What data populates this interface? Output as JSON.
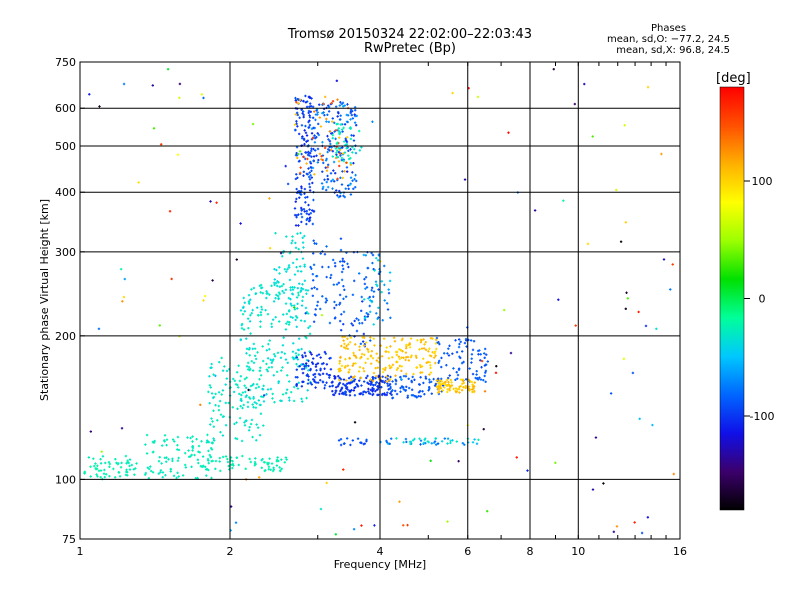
{
  "chart_data": {
    "type": "scatter",
    "title": "Tromsø 20150324 22:02:00–22:03:43",
    "subtitle": "RwPretec (Bp)",
    "xlabel": "Frequency [MHz]",
    "ylabel": "Stationary phase Virtual Height [km]",
    "x_scale": "log",
    "y_scale": "log",
    "xlim": [
      1,
      16
    ],
    "ylim": [
      75,
      750
    ],
    "x_ticks": [
      1,
      2,
      4,
      6,
      8,
      10,
      16
    ],
    "y_ticks": [
      75,
      100,
      200,
      300,
      400,
      500,
      600,
      750
    ],
    "grid": true,
    "stats": {
      "heading": "Phases",
      "line_o": "mean, sd,O: −77.2, 24.5",
      "line_x": "mean, sd,X: 96.8, 24.5"
    },
    "colorbar": {
      "label": "[deg]",
      "range": [
        -180,
        180
      ],
      "ticks": [
        100,
        0,
        -100
      ],
      "colors": [
        "#000000",
        "#3c006c",
        "#1010e8",
        "#0066ff",
        "#00c8ff",
        "#00ff9a",
        "#00e000",
        "#9cff00",
        "#ffff00",
        "#ffb000",
        "#ff5000",
        "#ff0000"
      ]
    },
    "series_bins": [
      {
        "freq": [
          1.02,
          1.3
        ],
        "height": [
          100,
          112
        ],
        "phase": [
          -30,
          -20
        ],
        "n": 60
      },
      {
        "freq": [
          1.35,
          1.85
        ],
        "height": [
          100,
          125
        ],
        "phase": [
          -30,
          -25
        ],
        "n": 100
      },
      {
        "freq": [
          1.75,
          2.6
        ],
        "height": [
          104,
          112
        ],
        "phase": [
          -30,
          -20
        ],
        "n": 70
      },
      {
        "freq": [
          1.8,
          2.35
        ],
        "height": [
          120,
          180
        ],
        "phase": [
          -35,
          -25
        ],
        "n": 120
      },
      {
        "freq": [
          2.1,
          2.9
        ],
        "height": [
          145,
          260
        ],
        "phase": [
          -40,
          -25
        ],
        "n": 220
      },
      {
        "freq": [
          2.45,
          2.85
        ],
        "height": [
          230,
          330
        ],
        "phase": [
          -40,
          -30
        ],
        "n": 70
      },
      {
        "freq": [
          2.7,
          2.95
        ],
        "height": [
          340,
          640
        ],
        "phase": [
          -110,
          -85
        ],
        "n": 170
      },
      {
        "freq": [
          2.9,
          3.6
        ],
        "height": [
          390,
          620
        ],
        "phase": [
          -105,
          -60
        ],
        "n": 180
      },
      {
        "freq": [
          2.7,
          3.5
        ],
        "height": [
          420,
          640
        ],
        "phase": [
          100,
          160
        ],
        "n": 50
      },
      {
        "freq": [
          3.2,
          3.7
        ],
        "height": [
          460,
          560
        ],
        "phase": [
          -35,
          -20
        ],
        "n": 40
      },
      {
        "freq": [
          2.9,
          3.4
        ],
        "height": [
          210,
          320
        ],
        "phase": [
          -95,
          -80
        ],
        "n": 60
      },
      {
        "freq": [
          3.3,
          3.9
        ],
        "height": [
          190,
          300
        ],
        "phase": [
          -100,
          -80
        ],
        "n": 50
      },
      {
        "freq": [
          2.7,
          3.2
        ],
        "height": [
          155,
          185
        ],
        "phase": [
          -110,
          -90
        ],
        "n": 80
      },
      {
        "freq": [
          3.2,
          4.2
        ],
        "height": [
          150,
          165
        ],
        "phase": [
          -110,
          -90
        ],
        "n": 150
      },
      {
        "freq": [
          4.2,
          5.4
        ],
        "height": [
          148,
          165
        ],
        "phase": [
          -95,
          -80
        ],
        "n": 70
      },
      {
        "freq": [
          5.2,
          6.6
        ],
        "height": [
          160,
          200
        ],
        "phase": [
          -95,
          -80
        ],
        "n": 80
      },
      {
        "freq": [
          3.3,
          4.3
        ],
        "height": [
          160,
          200
        ],
        "phase": [
          95,
          115
        ],
        "n": 110
      },
      {
        "freq": [
          4.3,
          5.2
        ],
        "height": [
          165,
          200
        ],
        "phase": [
          95,
          115
        ],
        "n": 80
      },
      {
        "freq": [
          5.2,
          6.2
        ],
        "height": [
          152,
          162
        ],
        "phase": [
          95,
          115
        ],
        "n": 80
      },
      {
        "freq": [
          3.7,
          4.2
        ],
        "height": [
          210,
          300
        ],
        "phase": [
          -90,
          -30
        ],
        "n": 50
      },
      {
        "freq": [
          4.0,
          6.4
        ],
        "height": [
          118,
          122
        ],
        "phase": [
          -90,
          -20
        ],
        "n": 50
      },
      {
        "freq": [
          3.3,
          3.8
        ],
        "height": [
          117,
          122
        ],
        "phase": [
          -100,
          -85
        ],
        "n": 15
      },
      {
        "freq": [
          1.02,
          16
        ],
        "height": [
          75,
          740
        ],
        "phase": [
          -180,
          180
        ],
        "n": 130
      }
    ]
  }
}
